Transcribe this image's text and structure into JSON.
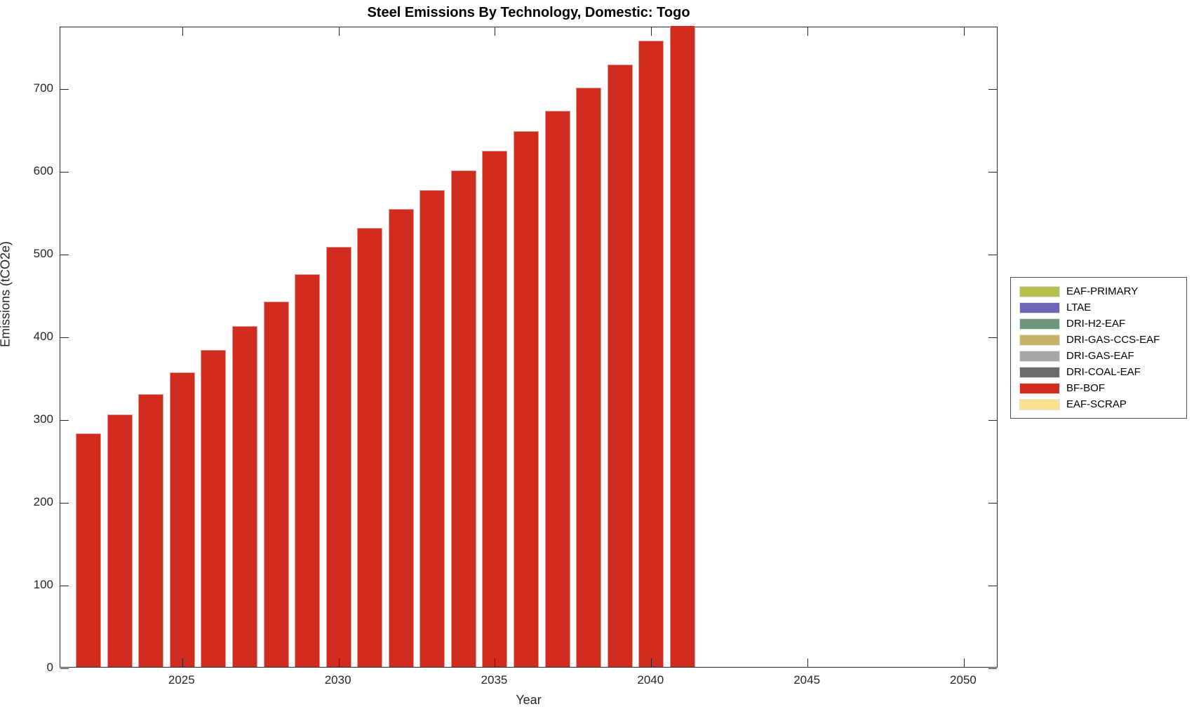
{
  "chart_data": {
    "type": "bar",
    "title": "Steel Emissions By Technology, Domestic: Togo",
    "xlabel": "Year",
    "ylabel": "Emissions (tCO2e)",
    "xlim": [
      2021.1,
      2051.1
    ],
    "ylim": [
      0,
      775
    ],
    "x_ticks": [
      2025,
      2030,
      2035,
      2040,
      2045,
      2050
    ],
    "y_ticks": [
      0,
      100,
      200,
      300,
      400,
      500,
      600,
      700
    ],
    "grid": false,
    "legend_position": "right-outside",
    "categories": [
      2022,
      2023,
      2024,
      2025,
      2026,
      2027,
      2028,
      2029,
      2030,
      2031,
      2032,
      2033,
      2034,
      2035,
      2036,
      2037,
      2038,
      2039,
      2040,
      2041
    ],
    "series": [
      {
        "name": "BF-BOF",
        "color": "#d22b20",
        "values": [
          282,
          305,
          330,
          356,
          383,
          412,
          442,
          475,
          508,
          531,
          554,
          577,
          600,
          624,
          648,
          672,
          700,
          728,
          757,
          785
        ]
      }
    ],
    "legend_entries": [
      {
        "label": "EAF-PRIMARY",
        "color": "#b6c24f"
      },
      {
        "label": "LTAE",
        "color": "#7066b6"
      },
      {
        "label": "DRI-H2-EAF",
        "color": "#6e977a"
      },
      {
        "label": "DRI-GAS-CCS-EAF",
        "color": "#c4b566"
      },
      {
        "label": "DRI-GAS-EAF",
        "color": "#a7a7a7"
      },
      {
        "label": "DRI-COAL-EAF",
        "color": "#6b6b6b"
      },
      {
        "label": "BF-BOF",
        "color": "#d22b20"
      },
      {
        "label": "EAF-SCRAP",
        "color": "#fbe08f"
      }
    ]
  }
}
